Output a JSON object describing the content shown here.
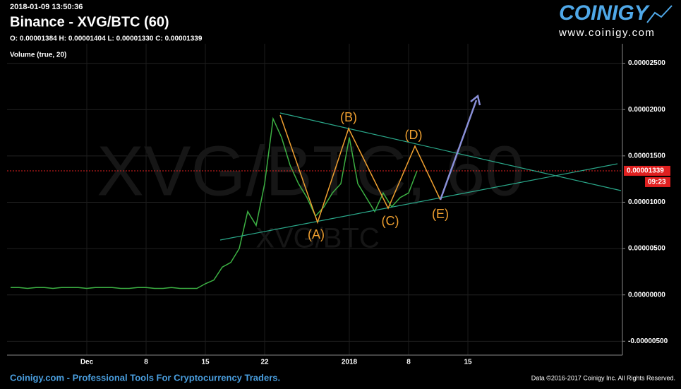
{
  "header": {
    "timestamp": "2018-01-09 13:50:36",
    "title": "Binance - XVG/BTC (60)",
    "ohlc": "O: 0.00001384 H: 0.00001404 L: 0.00001330 C: 0.00001339",
    "indicator": "Volume (true, 20)"
  },
  "logo": {
    "name": "COINIGY",
    "url": "www.coinigy.com"
  },
  "footer": {
    "left": "Coinigy.com - Professional Tools For Cryptocurrency Traders.",
    "right": "Data ©2016-2017 Coinigy Inc. All Rights Reserved."
  },
  "chart_data": {
    "type": "line",
    "watermark": "XVG/BTC, 60",
    "sub_watermark": "XVG/BTC",
    "color": "#3cb043",
    "categories": [
      null,
      null,
      null,
      null,
      null,
      null,
      null,
      null,
      null,
      "Dec",
      null,
      null,
      null,
      null,
      null,
      null,
      "8",
      null,
      null,
      null,
      null,
      null,
      null,
      "15",
      null,
      null,
      null,
      null,
      null,
      null,
      "22",
      null,
      null,
      null,
      null,
      null,
      null,
      null,
      null,
      null,
      "2018",
      null,
      null,
      null,
      null,
      null,
      null,
      "8",
      null,
      null,
      null,
      null,
      null,
      null,
      "15",
      null,
      null,
      null,
      null,
      null,
      null,
      null,
      null,
      null,
      null,
      null,
      null,
      null,
      null,
      null,
      null,
      null,
      null
    ],
    "values": [
      8e-07,
      8e-07,
      7e-07,
      8e-07,
      8e-07,
      7e-07,
      8e-07,
      8e-07,
      8e-07,
      7e-07,
      8e-07,
      8e-07,
      8e-07,
      7e-07,
      7e-07,
      8e-07,
      8e-07,
      7e-07,
      7e-07,
      8e-07,
      7e-07,
      7e-07,
      7e-07,
      1.2e-06,
      1.6e-06,
      3e-06,
      3.5e-06,
      5e-06,
      9e-06,
      7.5e-06,
      1.2e-05,
      1.9e-05,
      1.7e-05,
      1.4e-05,
      1.2e-05,
      1.05e-05,
      8.5e-06,
      9.5e-06,
      1.1e-05,
      1.2e-05,
      1.7e-05,
      1.2e-05,
      1.05e-05,
      9e-06,
      1.1e-05,
      9.5e-06,
      1.05e-05,
      1.1e-05,
      1.339e-05,
      null,
      null,
      null,
      null,
      null,
      null,
      null,
      null,
      null,
      null,
      null,
      null,
      null,
      null,
      null,
      null,
      null,
      null,
      null,
      null,
      null,
      null,
      null,
      null
    ],
    "ylim": [
      -6.5e-06,
      2.71e-05
    ],
    "yticks": [
      {
        "value": 2.5e-05,
        "label": "0.00002500"
      },
      {
        "value": 2e-05,
        "label": "0.00002000"
      },
      {
        "value": 1.5e-05,
        "label": "0.00001500"
      },
      {
        "value": 1e-05,
        "label": "0.00001000"
      },
      {
        "value": 5e-06,
        "label": "0.00000500"
      },
      {
        "value": 0,
        "label": "0.00000000"
      },
      {
        "value": -5e-06,
        "label": "-0.00000500"
      }
    ],
    "grid": true,
    "last_price": 1.339e-05,
    "countdown": "09:23",
    "annotations": [
      "(A)",
      "(B)",
      "(C)",
      "(D)",
      "(E)"
    ]
  }
}
